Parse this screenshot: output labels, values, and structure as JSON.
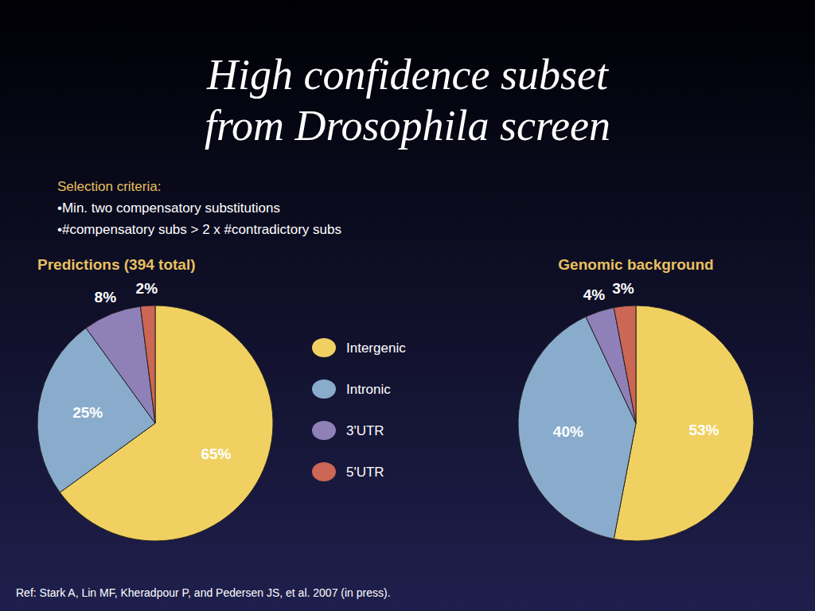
{
  "title": "High confidence subset\nfrom Drosophila screen",
  "annotations": [
    "Selection criteria:",
    "•Min. two compensatory substitutions",
    "•#compensatory subs > 2 x #contradictory subs",
    "Ref: Stark A, Lin MF, Kheradpour P, and Pedersen JS, et al. 2007 (in press)."
  ],
  "chart_data": [
    {
      "type": "pie",
      "title": "Predictions (394 total)",
      "categories": [
        "Intergenic",
        "Intronic",
        "3'UTR",
        "5'UTR"
      ],
      "values": [
        65,
        25,
        8,
        2
      ],
      "value_labels": [
        "65%",
        "25%",
        "8%",
        "2%"
      ],
      "colors": [
        "#f0d060",
        "#8aaccc",
        "#9080b8",
        "#cc6655"
      ],
      "data_labels": true,
      "legend": "right"
    },
    {
      "type": "pie",
      "title": "Genomic background",
      "values": [
        53,
        40,
        4,
        3
      ],
      "value_labels": [
        "53%",
        "40%",
        "4%",
        "3%"
      ],
      "colors": [
        "#f0d060",
        "#8aaccc",
        "#9080b8",
        "#cc6655"
      ],
      "data_labels": true
    }
  ]
}
